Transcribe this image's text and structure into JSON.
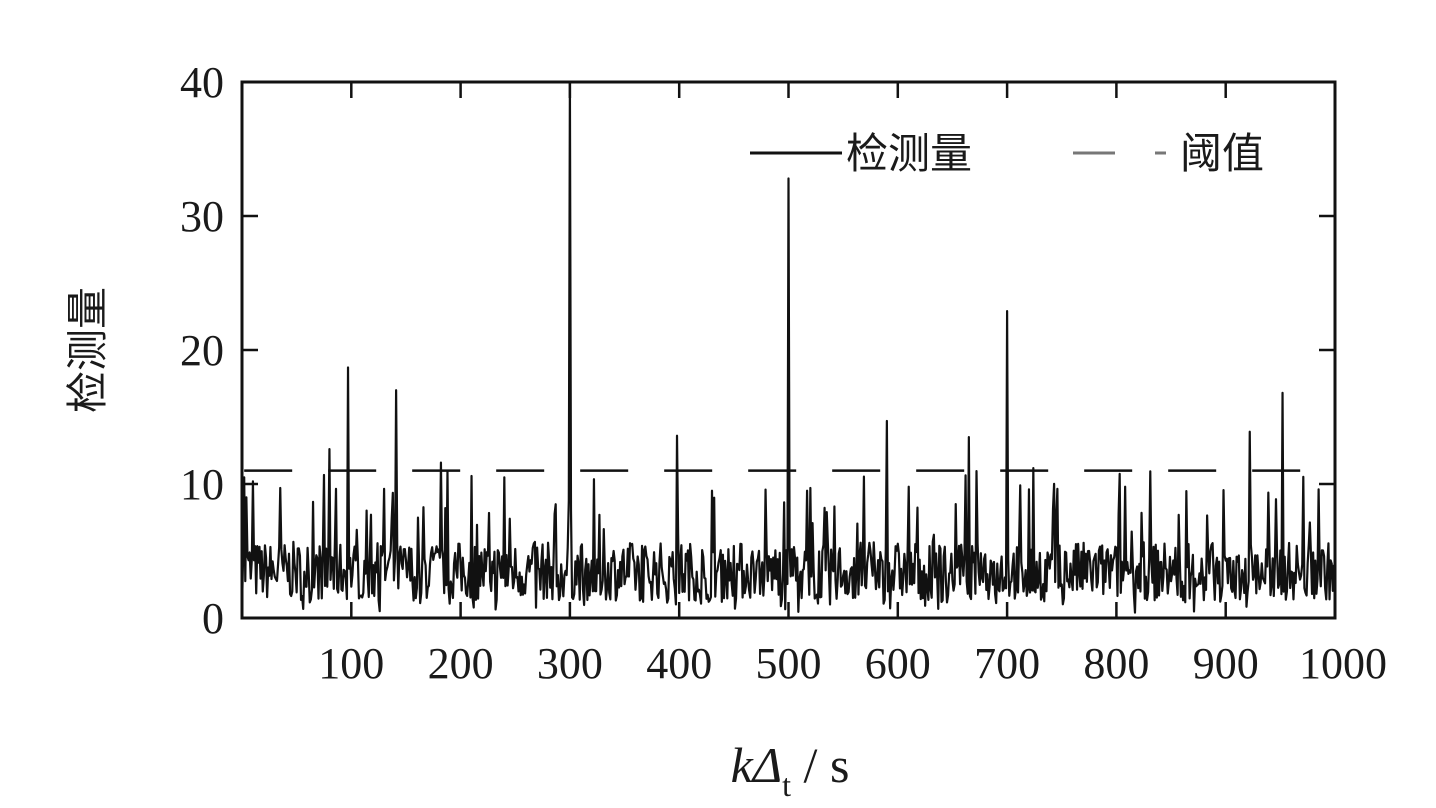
{
  "chart_data": {
    "type": "line",
    "xlabel": {
      "var": "k",
      "delta": "Δ",
      "sub": "t",
      "unit": " / s"
    },
    "ylabel": "检测量",
    "xlim": [
      0,
      1000
    ],
    "ylim": [
      0,
      40
    ],
    "x_ticks": [
      100,
      200,
      300,
      400,
      500,
      600,
      700,
      800,
      900,
      1000
    ],
    "y_ticks": [
      0,
      10,
      20,
      30,
      40
    ],
    "legend": {
      "position": "top-right",
      "entries": [
        "检测量",
        "阈值"
      ]
    },
    "grid": false,
    "colors": {
      "detection": "#111111",
      "threshold": "#111111",
      "axes": "#111111"
    },
    "series": [
      {
        "name": "检测量",
        "style": "solid",
        "baseline": 3.5,
        "noise": 2.2,
        "n_points": 1000,
        "spikes": [
          [
            2,
            10.5
          ],
          [
            4,
            9.0
          ],
          [
            10,
            10.2
          ],
          [
            35,
            9.7
          ],
          [
            80,
            12.6
          ],
          [
            97,
            18.7
          ],
          [
            141,
            17.0
          ],
          [
            182,
            11.6
          ],
          [
            210,
            10.6
          ],
          [
            240,
            10.5
          ],
          [
            300,
            40.0
          ],
          [
            398,
            13.6
          ],
          [
            430,
            9.5
          ],
          [
            500,
            32.8
          ],
          [
            520,
            9.7
          ],
          [
            590,
            14.7
          ],
          [
            610,
            9.8
          ],
          [
            665,
            13.5
          ],
          [
            700,
            22.9
          ],
          [
            720,
            9.6
          ],
          [
            808,
            9.8
          ],
          [
            922,
            13.9
          ],
          [
            952,
            16.8
          ],
          [
            985,
            9.6
          ]
        ]
      },
      {
        "name": "阈值",
        "style": "dashed",
        "value": 11
      }
    ]
  }
}
